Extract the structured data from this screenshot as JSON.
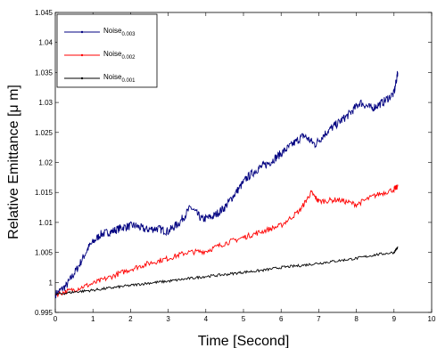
{
  "chart_data": {
    "type": "line",
    "title": "",
    "xlabel": "Time [Second]",
    "ylabel": "Relative Emittance [μ m]",
    "xlim": [
      0,
      10
    ],
    "ylim": [
      0.995,
      1.045
    ],
    "xticks": [
      "0",
      "1",
      "2",
      "3",
      "4",
      "5",
      "6",
      "7",
      "8",
      "9",
      "10"
    ],
    "yticks": [
      "0.995",
      "1",
      "1.005",
      "1.01",
      "1.015",
      "1.02",
      "1.025",
      "1.03",
      "1.035",
      "1.04",
      "1.045"
    ],
    "grid": false,
    "legend_position": "top-left",
    "series": [
      {
        "name": "Noise",
        "subscript": "0.003",
        "color": "#000080",
        "x": [
          0,
          0.3,
          0.6,
          0.9,
          1.2,
          1.5,
          1.8,
          2.1,
          2.4,
          2.7,
          3.0,
          3.3,
          3.6,
          3.9,
          4.2,
          4.5,
          4.8,
          5.1,
          5.4,
          5.7,
          6.0,
          6.3,
          6.6,
          6.9,
          7.2,
          7.5,
          7.8,
          8.1,
          8.4,
          8.7,
          9.0,
          9.1
        ],
        "y": [
          0.998,
          0.9995,
          1.0025,
          1.006,
          1.008,
          1.0085,
          1.0092,
          1.0095,
          1.0088,
          1.009,
          1.0085,
          1.01,
          1.0125,
          1.0105,
          1.011,
          1.0125,
          1.015,
          1.0175,
          1.019,
          1.02,
          1.0215,
          1.023,
          1.0245,
          1.023,
          1.025,
          1.0265,
          1.028,
          1.03,
          1.029,
          1.03,
          1.0315,
          1.035
        ]
      },
      {
        "name": "Noise",
        "subscript": "0.002",
        "color": "#ff0000",
        "x": [
          0,
          0.5,
          1.0,
          1.5,
          2.0,
          2.5,
          3.0,
          3.5,
          4.0,
          4.5,
          5.0,
          5.5,
          6.0,
          6.5,
          6.8,
          7.0,
          7.5,
          8.0,
          8.5,
          9.0,
          9.1
        ],
        "y": [
          0.998,
          0.9988,
          0.9998,
          1.001,
          1.0022,
          1.0032,
          1.004,
          1.005,
          1.0052,
          1.0065,
          1.0075,
          1.0085,
          1.0095,
          1.012,
          1.015,
          1.0135,
          1.0138,
          1.013,
          1.0145,
          1.0155,
          1.016
        ]
      },
      {
        "name": "Noise",
        "subscript": "0.001",
        "color": "#000000",
        "x": [
          0,
          0.5,
          1.0,
          1.5,
          2.0,
          2.5,
          3.0,
          3.5,
          4.0,
          4.5,
          5.0,
          5.5,
          6.0,
          6.5,
          7.0,
          7.5,
          8.0,
          8.5,
          9.0,
          9.1
        ],
        "y": [
          0.998,
          0.9984,
          0.9987,
          0.9991,
          0.9995,
          0.9999,
          1.0002,
          1.0006,
          1.001,
          1.0013,
          1.0017,
          1.002,
          1.0025,
          1.0028,
          1.0032,
          1.0036,
          1.004,
          1.0046,
          1.005,
          1.0058
        ]
      }
    ]
  }
}
